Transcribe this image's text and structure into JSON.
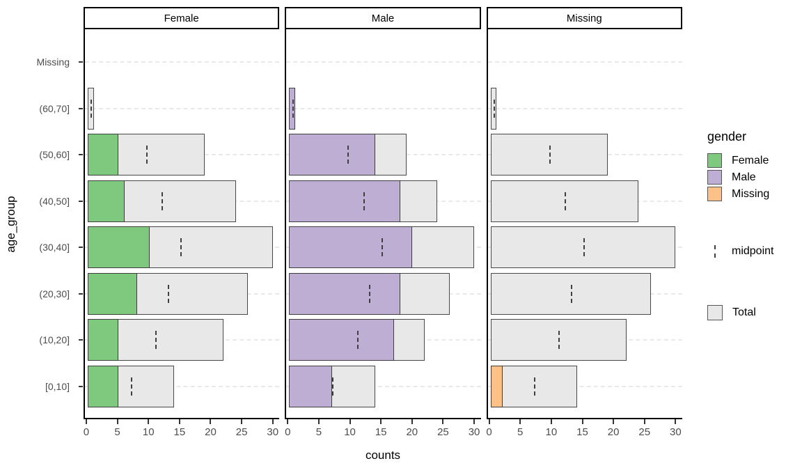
{
  "figure": {
    "x_title": "counts",
    "y_title": "age_group"
  },
  "chart_data": {
    "type": "bar",
    "orientation": "horizontal",
    "title": "",
    "xlabel": "counts",
    "ylabel": "age_group",
    "xlim": [
      0,
      30
    ],
    "x_ticks": [
      0,
      5,
      10,
      15,
      20,
      25,
      30
    ],
    "grid": "horizontal-dashed",
    "legend_position": "right",
    "facets": [
      "Female",
      "Male",
      "Missing"
    ],
    "categories": [
      "Missing",
      "(60,70]",
      "(50,60]",
      "(40,50]",
      "(30,40]",
      "(20,30]",
      "(10,20]",
      "[0,10]"
    ],
    "series": [
      {
        "name": "Female",
        "values": [
          0,
          0,
          5,
          6,
          10,
          8,
          5,
          5
        ]
      },
      {
        "name": "Male",
        "values": [
          0,
          1,
          14,
          18,
          20,
          18,
          17,
          7
        ]
      },
      {
        "name": "Missing",
        "values": [
          0,
          0,
          0,
          0,
          0,
          0,
          0,
          2
        ]
      }
    ],
    "total": [
      0,
      1,
      19,
      24,
      30,
      26,
      22,
      14
    ],
    "midpoint": [
      null,
      0.5,
      9.5,
      12,
      15,
      13,
      11,
      7
    ]
  },
  "colors": {
    "female": "#7FC97F",
    "male": "#BEAED4",
    "missing": "#FDC086",
    "total_fill": "#E8E8E8",
    "bar_border": "#3D3D3D",
    "grid_line": "#E9E9E9",
    "axis_text": "#4D4D4D"
  },
  "legend": {
    "title": "gender",
    "items": [
      {
        "label": "Female"
      },
      {
        "label": "Male"
      },
      {
        "label": "Missing"
      }
    ],
    "midpoint_label": "midpoint",
    "total_label": "Total"
  }
}
